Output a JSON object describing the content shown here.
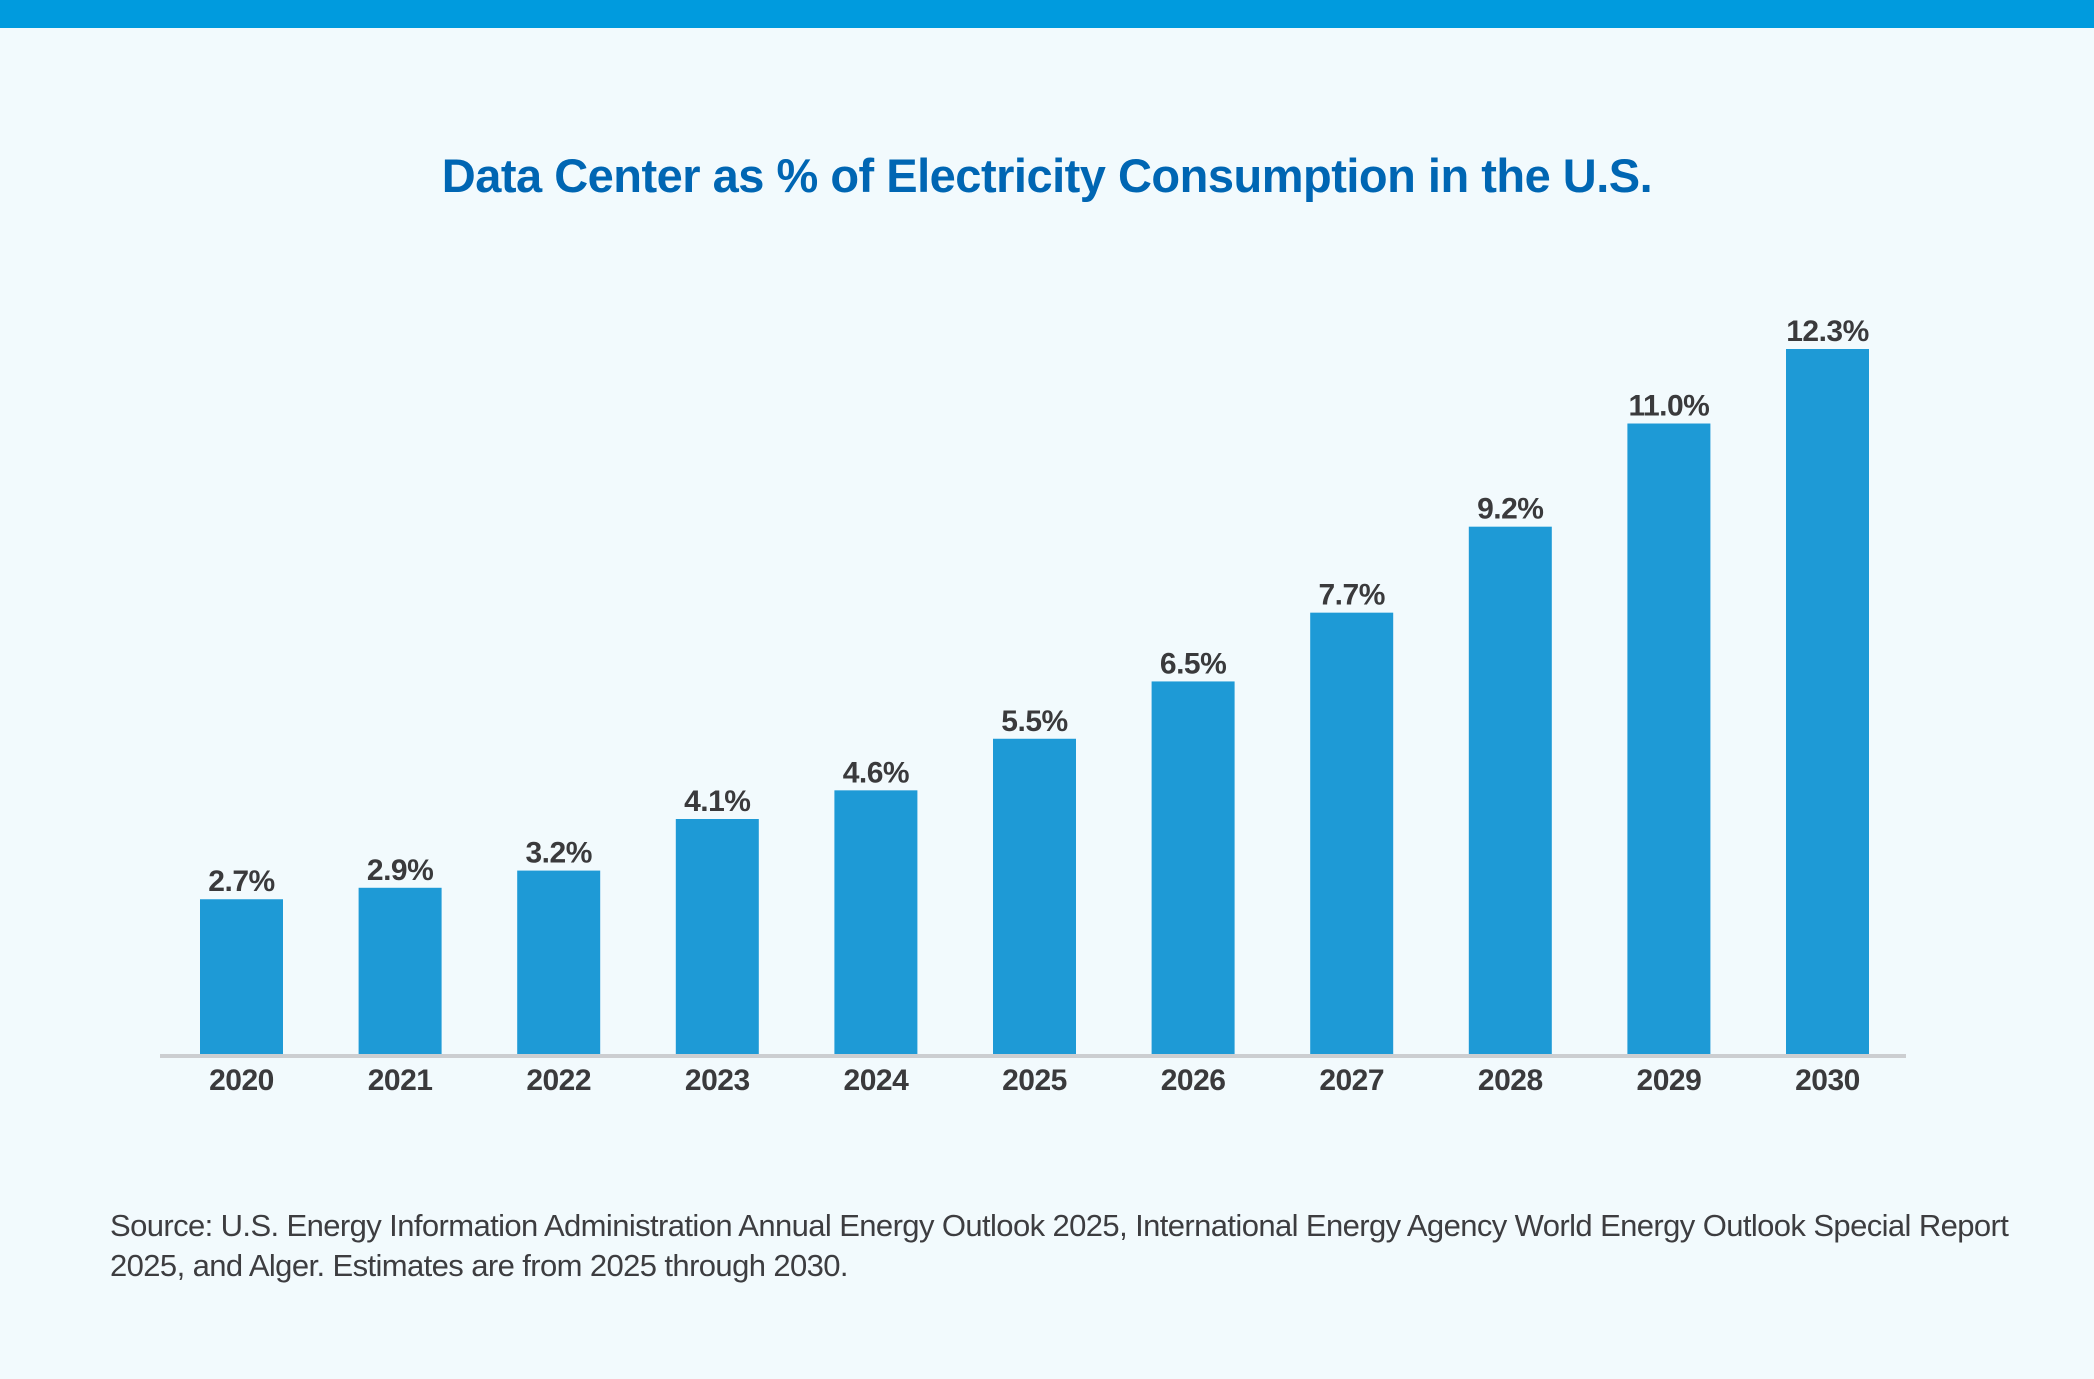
{
  "chart_data": {
    "type": "bar",
    "title": "Data Center as % of Electricity Consumption in the U.S.",
    "xlabel": "",
    "ylabel": "",
    "categories": [
      "2020",
      "2021",
      "2022",
      "2023",
      "2024",
      "2025",
      "2026",
      "2027",
      "2028",
      "2029",
      "2030"
    ],
    "values": [
      2.7,
      2.9,
      3.2,
      4.1,
      4.6,
      5.5,
      6.5,
      7.7,
      9.2,
      11.0,
      12.3
    ],
    "data_labels": [
      "2.7%",
      "2.9%",
      "3.2%",
      "4.1%",
      "4.6%",
      "5.5%",
      "6.5%",
      "7.7%",
      "9.2%",
      "11.0%",
      "12.3%"
    ],
    "ylim": [
      0,
      12.3
    ],
    "grid": false,
    "legend": "none",
    "colors": {
      "bar": "#1E9AD6",
      "title": "#0066B3",
      "accent_bar": "#009BDE",
      "background": "#F2FAFD",
      "axis": "#CCCED1"
    }
  },
  "source_note": "Source: U.S. Energy Information Administration Annual Energy Outlook 2025, International Energy Agency World Energy Outlook Special Report 2025, and Alger. Estimates are from 2025 through 2030."
}
